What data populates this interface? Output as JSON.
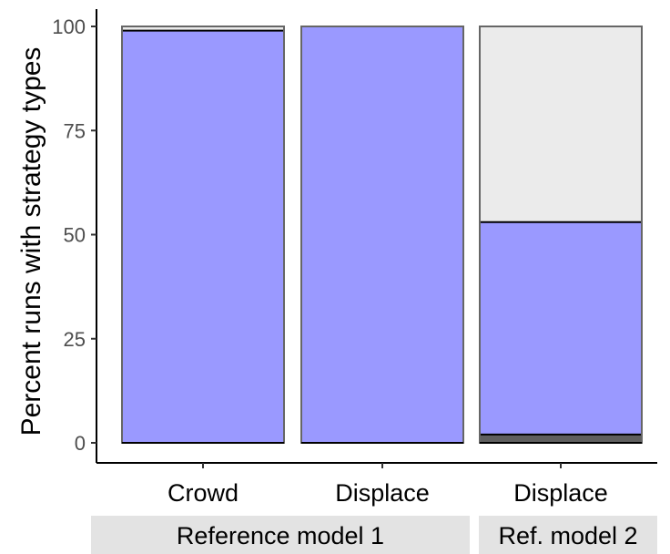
{
  "chart_data": {
    "type": "bar",
    "stacked": true,
    "title": "",
    "xlabel": "",
    "ylabel": "Percent runs with strategy types",
    "ylim": [
      0,
      100
    ],
    "y_ticks": [
      "0",
      "25",
      "50",
      "75",
      "100"
    ],
    "y_tick_values": [
      0,
      25,
      50,
      75,
      100
    ],
    "categories": [
      "Crowd",
      "Displace",
      "Displace"
    ],
    "facets": [
      {
        "label": "Reference model 1",
        "categories": [
          0,
          1
        ]
      },
      {
        "label": "Ref. model 2",
        "categories": [
          2
        ]
      }
    ],
    "series": [
      {
        "color": "#5f5f5f",
        "values": [
          0,
          0,
          2
        ]
      },
      {
        "color": "#9a99ff",
        "values": [
          99,
          100,
          51
        ]
      },
      {
        "color": "#ebebeb",
        "values": [
          1,
          0,
          47
        ]
      }
    ],
    "grid": false,
    "legend": "none"
  }
}
